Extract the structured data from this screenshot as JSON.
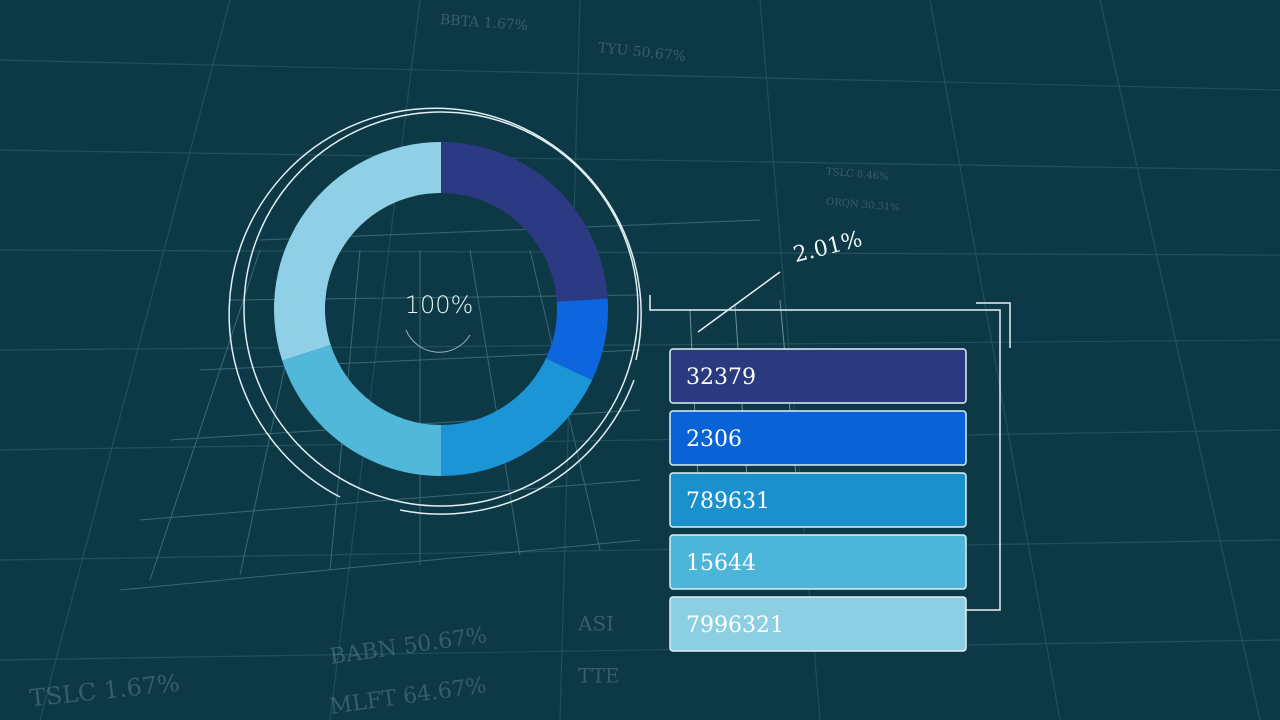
{
  "chart_data": {
    "type": "donut",
    "center_label": "100%",
    "annotation": "2.01%",
    "values": [
      24,
      8,
      18,
      20,
      30
    ],
    "colors": [
      "#2c3a84",
      "#0d66dd",
      "#1c95d6",
      "#52b8da",
      "#8fd0e6"
    ],
    "legend": [
      "32379",
      "2306",
      "789631",
      "15644",
      "7996321"
    ],
    "legend_colors": [
      "#2a3a80",
      "#0a63d6",
      "#1a90cc",
      "#4db5d8",
      "#8ccfe2"
    ]
  },
  "background_ticker": [
    "BBTA 1.67%",
    "TYU 50.67%",
    "TSLC 8.46%",
    "ORQN 30.31%",
    "BABN 50.67%",
    "TSLC 1.67%",
    "MLFT 64.67%",
    "ASI",
    "TTE"
  ]
}
